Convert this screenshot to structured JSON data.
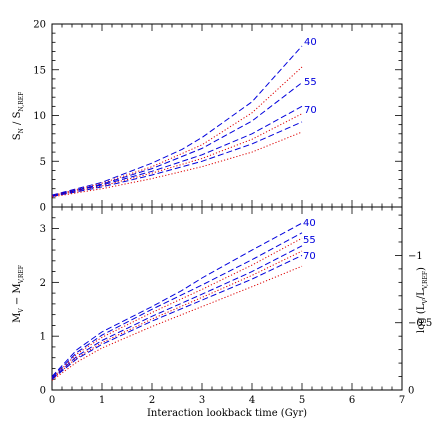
{
  "chart_data": [
    {
      "type": "line",
      "panel": "top",
      "ylabel": "S_N / S_N,REF",
      "ylabel_parts": {
        "s": "S",
        "sub1": "N",
        "slash": " / S",
        "sub2": "N,REF"
      },
      "xlim": [
        0,
        7
      ],
      "ylim": [
        0,
        20
      ],
      "yticks": [
        0,
        5,
        10,
        15,
        20
      ],
      "ytick_labels": [
        "0",
        "5",
        "10",
        "15",
        "20"
      ],
      "grid": false,
      "series": [
        {
          "name": "40",
          "style": "dashed",
          "color": "#0000dd",
          "x": [
            0,
            1,
            2,
            2.6,
            3,
            4,
            5
          ],
          "y": [
            1.3,
            2.7,
            4.8,
            6.3,
            7.6,
            11.5,
            17.6
          ]
        },
        {
          "style": "dotted",
          "color": "#dd0000",
          "x": [
            0,
            1,
            2,
            3,
            4,
            5
          ],
          "y": [
            1.25,
            2.6,
            4.4,
            6.8,
            10.3,
            15.3
          ]
        },
        {
          "style": "dashed",
          "color": "#0000dd",
          "x": [
            0,
            1,
            2,
            3,
            4,
            5
          ],
          "y": [
            1.25,
            2.5,
            4.2,
            6.4,
            9.4,
            13.6
          ]
        },
        {
          "name": "55",
          "style": "dashed",
          "color": "#0000dd",
          "x": [
            0,
            1,
            2,
            3,
            4,
            5
          ],
          "y": [
            1.2,
            2.4,
            3.9,
            5.7,
            8.0,
            11.0
          ]
        },
        {
          "style": "dotted",
          "color": "#dd0000",
          "x": [
            0,
            1,
            2,
            3,
            4,
            5
          ],
          "y": [
            1.2,
            2.3,
            3.7,
            5.3,
            7.4,
            10.2
          ]
        },
        {
          "name": "70",
          "style": "dashed",
          "color": "#0000dd",
          "x": [
            0,
            1,
            2,
            3,
            4,
            5
          ],
          "y": [
            1.15,
            2.2,
            3.5,
            5.0,
            6.9,
            9.3
          ]
        },
        {
          "style": "dotted",
          "color": "#dd0000",
          "x": [
            0,
            1,
            2,
            3,
            4,
            5
          ],
          "y": [
            1.1,
            2.0,
            3.1,
            4.4,
            6.0,
            8.2
          ]
        }
      ],
      "annotations": [
        "40",
        "55",
        "70"
      ]
    },
    {
      "type": "line",
      "panel": "bottom",
      "xlabel": "Interaction lookback time (Gyr)",
      "ylabel": "M_V - M_V,REF",
      "ylabel_parts": {
        "m1": "M",
        "sub1": "V",
        "minus": " − M",
        "sub2": "V,REF"
      },
      "ylabel_right": "log (L_V / L_V,REF)",
      "ylabel_right_parts": {
        "pre": "log (L",
        "sub1": "V",
        "mid": "/L",
        "sub2": "V,REF",
        "post": ")"
      },
      "xlim": [
        0,
        7
      ],
      "ylim": [
        0,
        3.4
      ],
      "xticks": [
        0,
        1,
        2,
        3,
        4,
        5,
        6,
        7
      ],
      "xtick_labels": [
        "0",
        "1",
        "2",
        "3",
        "4",
        "5",
        "6",
        "7"
      ],
      "yticks": [
        0,
        1,
        2,
        3
      ],
      "ytick_labels": [
        "0",
        "1",
        "2",
        "3"
      ],
      "right_ticks": [
        -1,
        -0.5,
        0
      ],
      "right_tick_labels": [
        "−1",
        "−0.5",
        "0"
      ],
      "grid": false,
      "series": [
        {
          "name": "40",
          "style": "dashed",
          "color": "#0000dd",
          "x": [
            0,
            0.5,
            1,
            2,
            2.6,
            3,
            4,
            5
          ],
          "y": [
            0.25,
            0.75,
            1.08,
            1.55,
            1.85,
            2.08,
            2.6,
            3.1
          ]
        },
        {
          "style": "dashed",
          "color": "#0000dd",
          "x": [
            0,
            0.5,
            1,
            2,
            3,
            4,
            5
          ],
          "y": [
            0.23,
            0.7,
            1.02,
            1.5,
            1.95,
            2.42,
            2.92
          ]
        },
        {
          "style": "dotted",
          "color": "#dd0000",
          "x": [
            0,
            0.5,
            1,
            2,
            3,
            4,
            5
          ],
          "y": [
            0.22,
            0.67,
            0.98,
            1.44,
            1.87,
            2.32,
            2.82
          ]
        },
        {
          "name": "55",
          "style": "dashed",
          "color": "#0000dd",
          "x": [
            0,
            0.5,
            1,
            2,
            3,
            4,
            5
          ],
          "y": [
            0.21,
            0.63,
            0.92,
            1.37,
            1.78,
            2.2,
            2.68
          ]
        },
        {
          "style": "dotted",
          "color": "#dd0000",
          "x": [
            0,
            0.5,
            1,
            2,
            3,
            4,
            5
          ],
          "y": [
            0.2,
            0.6,
            0.88,
            1.32,
            1.72,
            2.13,
            2.58
          ]
        },
        {
          "name": "70",
          "style": "dashed",
          "color": "#0000dd",
          "x": [
            0,
            0.5,
            1,
            2,
            3,
            4,
            5
          ],
          "y": [
            0.2,
            0.58,
            0.85,
            1.28,
            1.67,
            2.06,
            2.5
          ]
        },
        {
          "style": "dotted",
          "color": "#dd0000",
          "x": [
            0,
            0.5,
            1,
            2,
            3,
            4,
            5
          ],
          "y": [
            0.18,
            0.52,
            0.78,
            1.18,
            1.55,
            1.92,
            2.3
          ]
        }
      ],
      "annotations": [
        "40",
        "55",
        "70"
      ]
    }
  ]
}
